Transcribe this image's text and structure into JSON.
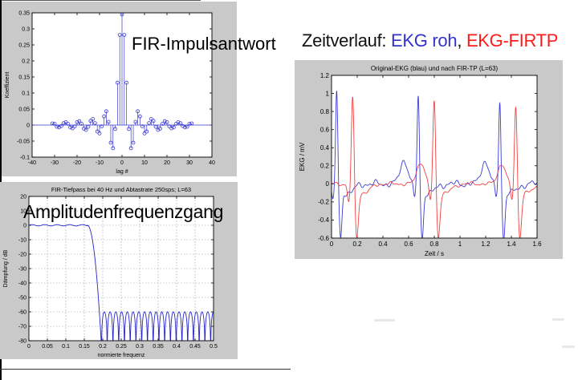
{
  "overlays": {
    "impulse_label": "FIR-Impulsantwort",
    "amplitude_label": "Amplitudenfrequenzgang",
    "heading_prefix": "Zeitverlauf: ",
    "heading_raw": "EKG roh",
    "heading_comma": ", ",
    "heading_filtered": "EKG-FIRTP"
  },
  "colors": {
    "panel_bg": "#c9c9c9",
    "heading_text": "#111111",
    "heading_raw": "#3333cc",
    "heading_filtered": "#ff1a1a"
  },
  "chart_data": [
    {
      "id": "impulse",
      "type": "stem",
      "title": "",
      "xlabel": "lag #",
      "ylabel": "Koeffizient",
      "xlim": [
        -40,
        40
      ],
      "ylim": [
        -0.1,
        0.35
      ],
      "xticks": [
        "-40",
        "-30",
        "-20",
        "-10",
        "0",
        "10",
        "20",
        "30",
        "40"
      ],
      "yticks": [
        "-0.1",
        "-0.05",
        "0",
        "0.05",
        "0.1",
        "0.15",
        "0.2",
        "0.25",
        "0.3",
        "0.35"
      ],
      "grid": false,
      "color": "#3b3bd1",
      "symmetric": true,
      "lag_range": [
        -31,
        31
      ],
      "coeff_half": [
        0.345,
        0.281,
        0.132,
        -0.012,
        -0.072,
        -0.055,
        0.01,
        0.043,
        0.027,
        -0.004,
        -0.026,
        -0.02,
        0.006,
        0.019,
        0.013,
        -0.005,
        -0.015,
        -0.011,
        0.004,
        0.012,
        0.009,
        -0.004,
        -0.01,
        -0.007,
        0.004,
        0.009,
        0.006,
        -0.003,
        -0.007,
        -0.005,
        0.004,
        0.005
      ]
    },
    {
      "id": "freqresp",
      "type": "line",
      "title": "FIR-Tiefpass bei 40 Hz und Abtastrate 250sps; L=63",
      "xlabel": "normierte frequenz",
      "ylabel": "Dämpfung / dB",
      "xlim": [
        0,
        0.5
      ],
      "ylim": [
        -80,
        20
      ],
      "xticks": [
        "0",
        "0.05",
        "0.1",
        "0.15",
        "0.2",
        "0.25",
        "0.3",
        "0.35",
        "0.4",
        "0.45",
        "0.5"
      ],
      "yticks": [
        "-80",
        "-70",
        "-60",
        "-50",
        "-40",
        "-30",
        "-20",
        "-10",
        "0",
        "10",
        "20"
      ],
      "grid": true,
      "color": "#2424cc",
      "response": {
        "passband_db": 0,
        "passband_ripple_db": 0.45,
        "passband_edge": 0.158,
        "transition_end": 0.1965,
        "stopband_db": -60,
        "stop_lobes": 19.5,
        "floor_db": -84
      }
    },
    {
      "id": "ekg",
      "type": "line",
      "title": "Original-EKG (blau) und nach FIR-TP (L=63)",
      "xlabel": "Zeit / s",
      "ylabel": "EKG / mV",
      "xlim": [
        0,
        1.6
      ],
      "ylim": [
        -0.6,
        1.2
      ],
      "xticks": [
        "0",
        "0.2",
        "0.4",
        "0.6",
        "0.8",
        "1",
        "1.2",
        "1.4",
        "1.6"
      ],
      "yticks": [
        "-0.6",
        "-0.4",
        "-0.2",
        "0",
        "0.2",
        "0.4",
        "0.6",
        "0.8",
        "1",
        "1.2"
      ],
      "grid": false,
      "series": [
        {
          "name": "EKG roh",
          "color": "#3a3ad6",
          "r_peaks": [
            0.04,
            0.675,
            1.31
          ],
          "r_amps": [
            1.05,
            1.0,
            0.94
          ],
          "t_peaks": [
            0.565,
            1.195
          ],
          "t_amps": [
            0.26,
            0.25
          ],
          "q_depth": 0.17,
          "s_depth": 0.55,
          "noise": 0.022,
          "width": 1.0,
          "phase": 0
        },
        {
          "name": "EKG-FIRTP",
          "color": "#f04040",
          "r_peaks": [
            0.165,
            0.8,
            1.435
          ],
          "r_amps": [
            1.02,
            0.98,
            0.92
          ],
          "t_peaks": [
            0.695,
            1.325
          ],
          "t_amps": [
            0.24,
            0.22
          ],
          "q_depth": 0.2,
          "s_depth": 0.55,
          "noise": 0.012,
          "width": 1.25,
          "phase": 1.3
        }
      ]
    }
  ]
}
